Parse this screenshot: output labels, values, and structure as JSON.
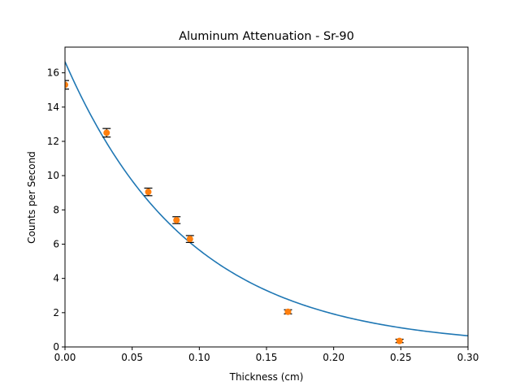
{
  "chart_data": {
    "type": "scatter",
    "title": "Aluminum Attenuation - Sr-90",
    "xlabel": "Thickness (cm)",
    "ylabel": "Counts per Second",
    "xlim": [
      0,
      0.3
    ],
    "ylim": [
      0,
      17.5
    ],
    "xticks": [
      0.0,
      0.05,
      0.1,
      0.15,
      0.2,
      0.25,
      0.3
    ],
    "xtick_labels": [
      "0.00",
      "0.05",
      "0.10",
      "0.15",
      "0.20",
      "0.25",
      "0.30"
    ],
    "yticks": [
      0,
      2,
      4,
      6,
      8,
      10,
      12,
      14,
      16
    ],
    "ytick_labels": [
      "0",
      "2",
      "4",
      "6",
      "8",
      "10",
      "12",
      "14",
      "16"
    ],
    "grid": false,
    "series": [
      {
        "kind": "points_with_errorbars",
        "color": "#ff7f0e",
        "errorbar_color": "#000000",
        "x": [
          0.0,
          0.031,
          0.062,
          0.083,
          0.093,
          0.166,
          0.249
        ],
        "y": [
          15.3,
          12.5,
          9.05,
          7.4,
          6.3,
          2.05,
          0.35
        ],
        "yerr": [
          0.25,
          0.25,
          0.22,
          0.2,
          0.2,
          0.12,
          0.1
        ]
      },
      {
        "kind": "fit_curve",
        "color": "#1f77b4",
        "model": "exponential",
        "a": 16.65,
        "b": 10.8
      }
    ]
  }
}
